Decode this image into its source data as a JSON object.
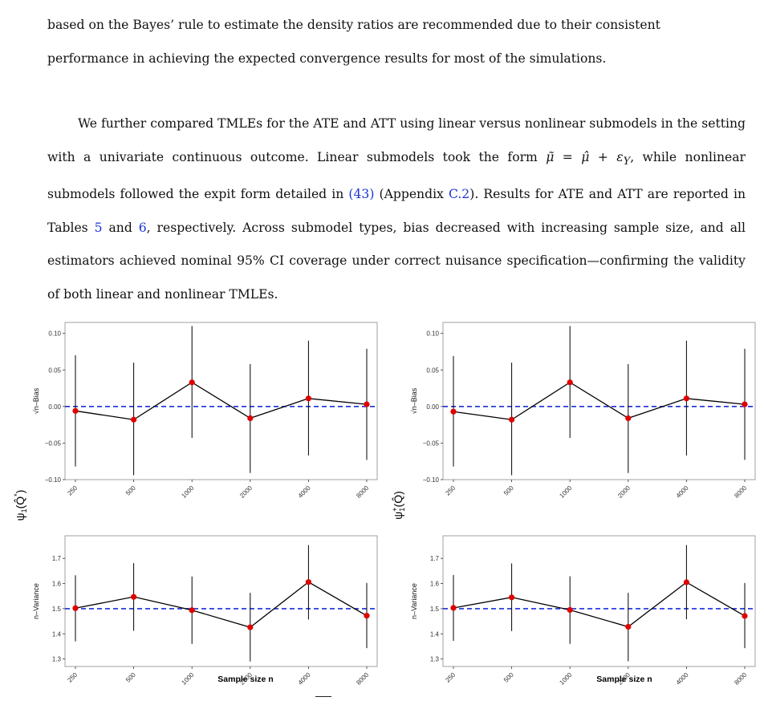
{
  "paragraph1": {
    "lines": [
      "based on the Bayes’ rule to estimate the density ratios are recommended due to their consistent",
      "performance in achieving the expected convergence results for most of the simulations."
    ]
  },
  "paragraph2": {
    "s1": "We further compared TMLEs for the ATE and ATT using linear versus nonlinear submodels in the setting with a univariate continuous outcome. Linear submodels took the form ",
    "formula": "μ̃ = μ̂ + ε",
    "formula_sub": "Y",
    "s2": ", while nonlinear submodels followed the expit form detailed in ",
    "ref_eq": "(43)",
    "s3": " (Appendix ",
    "ref_app": "C.2",
    "s4": "). Results for ATE and ATT are reported in Tables ",
    "ref_t5": "5",
    "s5": " and ",
    "ref_t6": "6",
    "s6": ", respectively. Across submodel types, bias decreased with increasing sample size, and all estimators achieved nominal 95% CI coverage under correct nuisance specification—confirming the validity of both linear and nonlinear TMLEs."
  },
  "figure": {
    "left_group_label_base": "ψ",
    "left_group_label_sub": "1",
    "left_group_label_arg": "(Q̂",
    "left_group_label_sup": "*",
    "left_group_label_close": ")",
    "right_group_label_base": "ψ",
    "right_group_label_sub": "1",
    "right_group_label_sup": "+",
    "right_group_label_arg": "(Q̂)",
    "xlabel": "Sample size n"
  },
  "chart_data": [
    {
      "type": "line",
      "panel": "top-left",
      "ylabel": "√n–Bias",
      "ylim": [
        -0.1,
        0.115
      ],
      "yticks": [
        -0.1,
        -0.05,
        0.0,
        0.05,
        0.1
      ],
      "ytick_labels": [
        "−0.10",
        "−0.05",
        "0.00",
        "0.05",
        "0.10"
      ],
      "xlim": [
        250,
        8000
      ],
      "xticks": [
        250,
        500,
        1000,
        2000,
        4000,
        8000
      ],
      "xtick_labels": [
        "250",
        "500",
        "1000",
        "2000",
        "4000",
        "8000"
      ],
      "reference_line": 0.0,
      "x": [
        250,
        500,
        1000,
        2000,
        4000,
        8000
      ],
      "y": [
        -0.006,
        -0.018,
        0.033,
        -0.016,
        0.011,
        0.003
      ],
      "lower": [
        -0.082,
        -0.094,
        -0.043,
        -0.091,
        -0.067,
        -0.073
      ],
      "upper": [
        0.07,
        0.06,
        0.11,
        0.058,
        0.09,
        0.079
      ]
    },
    {
      "type": "line",
      "panel": "top-right",
      "ylabel": "√n–Bias",
      "ylim": [
        -0.1,
        0.115
      ],
      "yticks": [
        -0.1,
        -0.05,
        0.0,
        0.05,
        0.1
      ],
      "ytick_labels": [
        "−0.10",
        "−0.05",
        "0.00",
        "0.05",
        "0.10"
      ],
      "xlim": [
        250,
        8000
      ],
      "xticks": [
        250,
        500,
        1000,
        2000,
        4000,
        8000
      ],
      "xtick_labels": [
        "250",
        "500",
        "1000",
        "2000",
        "4000",
        "8000"
      ],
      "reference_line": 0.0,
      "x": [
        250,
        500,
        1000,
        2000,
        4000,
        8000
      ],
      "y": [
        -0.007,
        -0.018,
        0.033,
        -0.016,
        0.011,
        0.003
      ],
      "lower": [
        -0.082,
        -0.094,
        -0.043,
        -0.091,
        -0.067,
        -0.073
      ],
      "upper": [
        0.069,
        0.06,
        0.11,
        0.058,
        0.09,
        0.079
      ]
    },
    {
      "type": "line",
      "panel": "bottom-left",
      "ylabel": "n–Variance",
      "ylim": [
        1.27,
        1.79
      ],
      "yticks": [
        1.3,
        1.4,
        1.5,
        1.6,
        1.7
      ],
      "ytick_labels": [
        "1.3",
        "1.4",
        "1.5",
        "1.6",
        "1.7"
      ],
      "xlim": [
        250,
        8000
      ],
      "xticks": [
        250,
        500,
        1000,
        2000,
        4000,
        8000
      ],
      "xtick_labels": [
        "250",
        "500",
        "1000",
        "2000",
        "4000",
        "8000"
      ],
      "reference_line": 1.5,
      "x": [
        250,
        500,
        1000,
        2000,
        4000,
        8000
      ],
      "y": [
        1.502,
        1.547,
        1.494,
        1.426,
        1.606,
        1.472
      ],
      "lower": [
        1.37,
        1.412,
        1.36,
        1.29,
        1.457,
        1.343
      ],
      "upper": [
        1.633,
        1.681,
        1.628,
        1.563,
        1.753,
        1.602
      ]
    },
    {
      "type": "line",
      "panel": "bottom-right",
      "ylabel": "n–Variance",
      "ylim": [
        1.27,
        1.79
      ],
      "yticks": [
        1.3,
        1.4,
        1.5,
        1.6,
        1.7
      ],
      "ytick_labels": [
        "1.3",
        "1.4",
        "1.5",
        "1.6",
        "1.7"
      ],
      "xlim": [
        250,
        8000
      ],
      "xticks": [
        250,
        500,
        1000,
        2000,
        4000,
        8000
      ],
      "xtick_labels": [
        "250",
        "500",
        "1000",
        "2000",
        "4000",
        "8000"
      ],
      "reference_line": 1.5,
      "x": [
        250,
        500,
        1000,
        2000,
        4000,
        8000
      ],
      "y": [
        1.503,
        1.545,
        1.495,
        1.428,
        1.605,
        1.471
      ],
      "lower": [
        1.372,
        1.411,
        1.36,
        1.291,
        1.458,
        1.343
      ],
      "upper": [
        1.634,
        1.68,
        1.629,
        1.563,
        1.753,
        1.602
      ]
    }
  ],
  "colors": {
    "point": "#e00000",
    "reference_line": "#1a2fd6",
    "line": "#000000",
    "panel_border": "#8a8a8a"
  }
}
